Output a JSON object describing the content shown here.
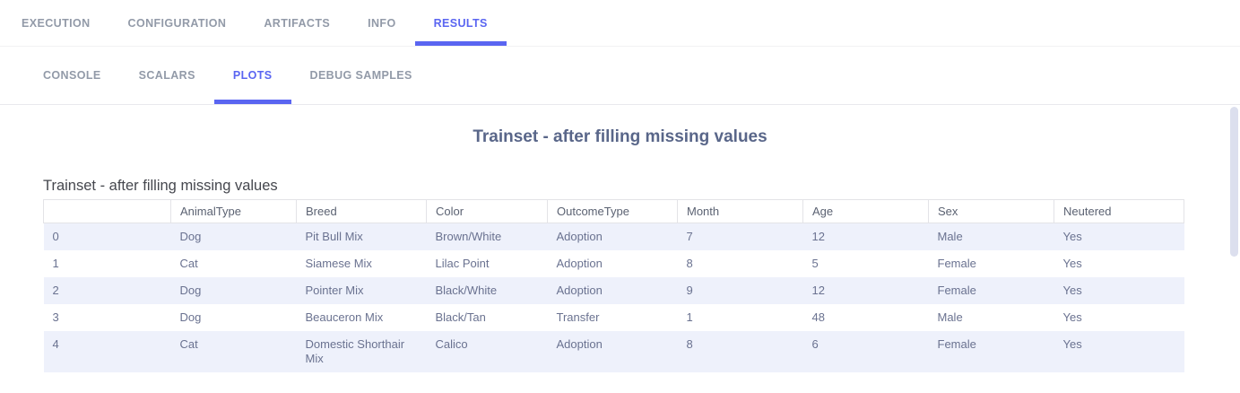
{
  "tabs": {
    "primary": [
      {
        "label": "EXECUTION",
        "active": false
      },
      {
        "label": "CONFIGURATION",
        "active": false
      },
      {
        "label": "ARTIFACTS",
        "active": false
      },
      {
        "label": "INFO",
        "active": false
      },
      {
        "label": "RESULTS",
        "active": true
      }
    ],
    "secondary": [
      {
        "label": "CONSOLE",
        "active": false
      },
      {
        "label": "SCALARS",
        "active": false
      },
      {
        "label": "PLOTS",
        "active": true
      },
      {
        "label": "DEBUG SAMPLES",
        "active": false
      }
    ]
  },
  "plot": {
    "title": "Trainset - after filling missing values"
  },
  "table": {
    "title": "Trainset - after filling missing values",
    "columns": [
      "",
      "AnimalType",
      "Breed",
      "Color",
      "OutcomeType",
      "Month",
      "Age",
      "Sex",
      "Neutered"
    ],
    "rows": [
      [
        "0",
        "Dog",
        "Pit Bull Mix",
        "Brown/White",
        "Adoption",
        "7",
        "12",
        "Male",
        "Yes"
      ],
      [
        "1",
        "Cat",
        "Siamese Mix",
        "Lilac Point",
        "Adoption",
        "8",
        "5",
        "Female",
        "Yes"
      ],
      [
        "2",
        "Dog",
        "Pointer Mix",
        "Black/White",
        "Adoption",
        "9",
        "12",
        "Female",
        "Yes"
      ],
      [
        "3",
        "Dog",
        "Beauceron Mix",
        "Black/Tan",
        "Transfer",
        "1",
        "48",
        "Male",
        "Yes"
      ],
      [
        "4",
        "Cat",
        "Domestic Shorthair Mix",
        "Calico",
        "Adoption",
        "8",
        "6",
        "Female",
        "Yes"
      ]
    ]
  },
  "colors": {
    "accent": "#5a65f1",
    "inactive_tab": "#929aa8",
    "plot_title": "#596689",
    "table_alt_row": "#eef1fb",
    "table_border": "#e3e3e7",
    "scrollbar_thumb": "#dcdfee"
  }
}
